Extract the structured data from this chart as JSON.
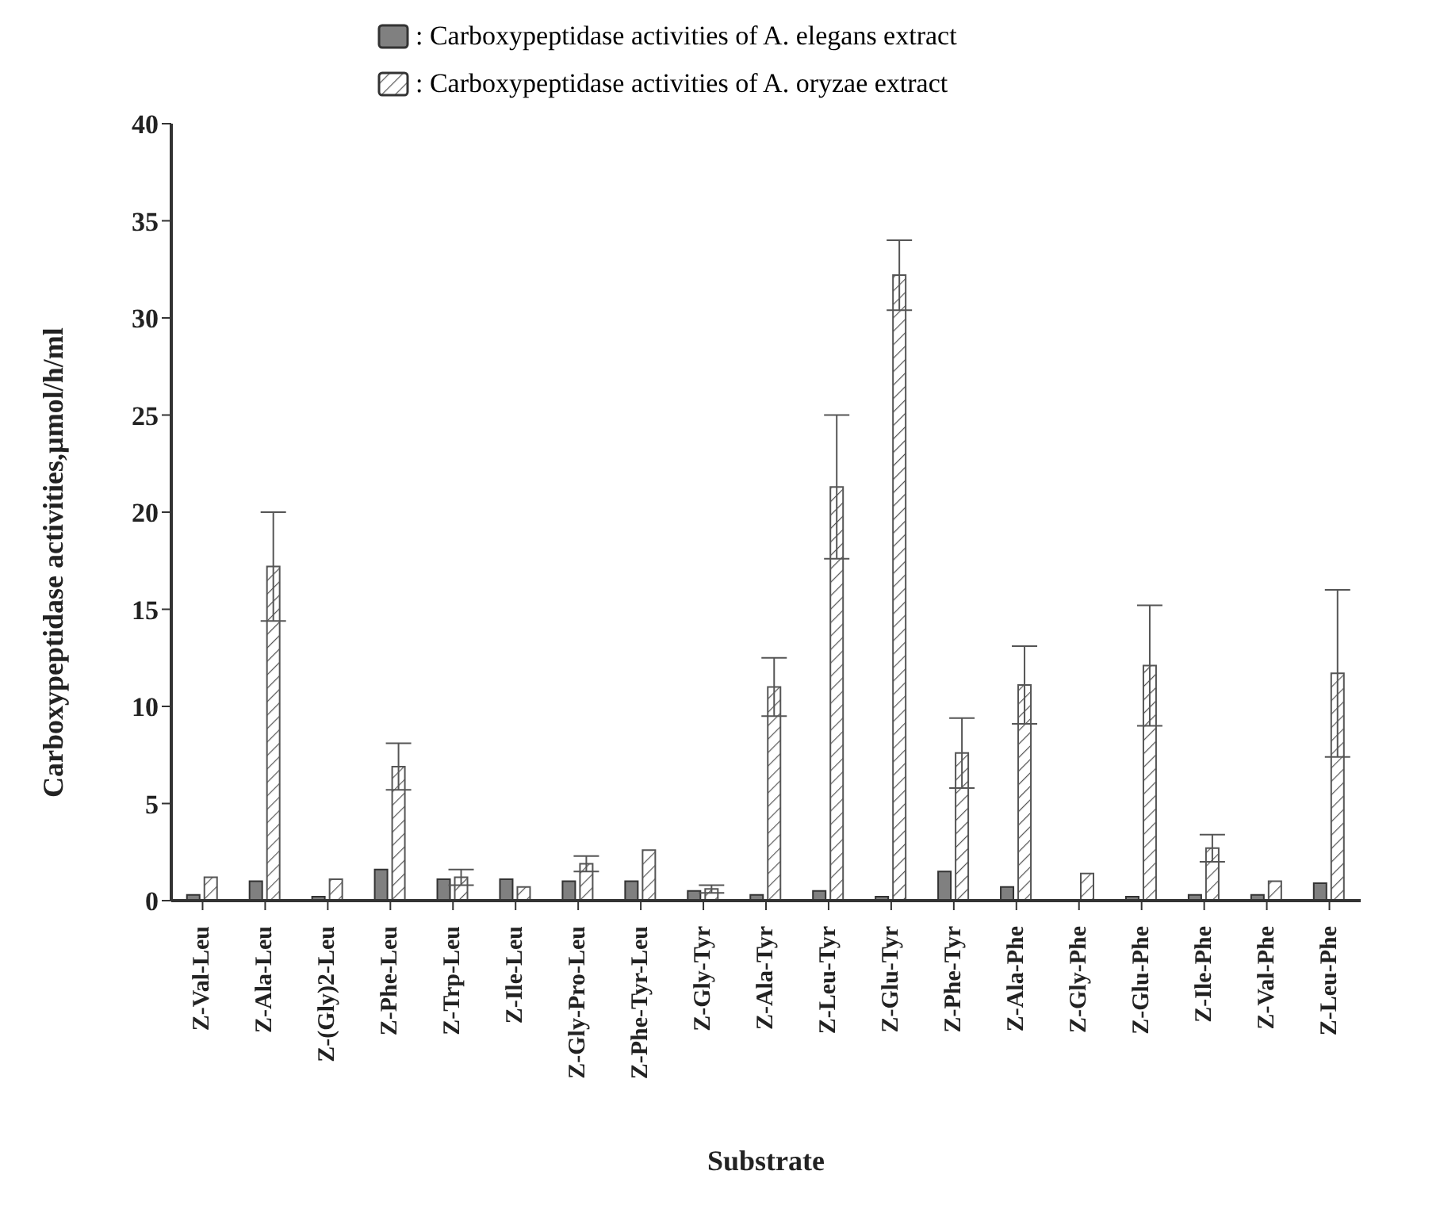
{
  "chart_data": {
    "type": "bar",
    "xlabel": "Substrate",
    "ylabel": "Carboxypeptidase activities,µmol/h/ml",
    "categories": [
      "Z-Val-Leu",
      "Z-Ala-Leu",
      "Z-(Gly)2-Leu",
      "Z-Phe-Leu",
      "Z-Trp-Leu",
      "Z-Ile-Leu",
      "Z-Gly-Pro-Leu",
      "Z-Phe-Tyr-Leu",
      "Z-Gly-Tyr",
      "Z-Ala-Tyr",
      "Z-Leu-Tyr",
      "Z-Glu-Tyr",
      "Z-Phe-Tyr",
      "Z-Ala-Phe",
      "Z-Gly-Phe",
      "Z-Glu-Phe",
      "Z-Ile-Phe",
      "Z-Val-Phe",
      "Z-Leu-Phe"
    ],
    "series": [
      {
        "name": ": Carboxypeptidase activities of A. elegans extract",
        "color": "#808080",
        "values": [
          0.3,
          1.0,
          0.2,
          1.6,
          1.1,
          1.1,
          1.0,
          1.0,
          0.5,
          0.3,
          0.5,
          0.2,
          1.5,
          0.7,
          0,
          0.2,
          0.3,
          0.3,
          0.9
        ]
      },
      {
        "name": ": Carboxypeptidase activities of A. oryzae extract",
        "color": "#555555",
        "values": [
          1.2,
          17.2,
          1.1,
          6.9,
          1.2,
          0.7,
          1.9,
          2.6,
          0.6,
          11.0,
          21.3,
          32.2,
          7.6,
          11.1,
          1.4,
          12.1,
          2.7,
          1.0,
          11.7
        ],
        "errors": [
          null,
          2.8,
          null,
          1.2,
          0.4,
          null,
          0.4,
          null,
          0.2,
          1.5,
          3.7,
          1.8,
          1.8,
          2.0,
          null,
          3.1,
          0.7,
          null,
          4.3
        ]
      }
    ],
    "ylim": [
      0,
      40
    ],
    "yticks": [
      0,
      5,
      10,
      15,
      20,
      25,
      30,
      35,
      40
    ],
    "legend": "top"
  }
}
